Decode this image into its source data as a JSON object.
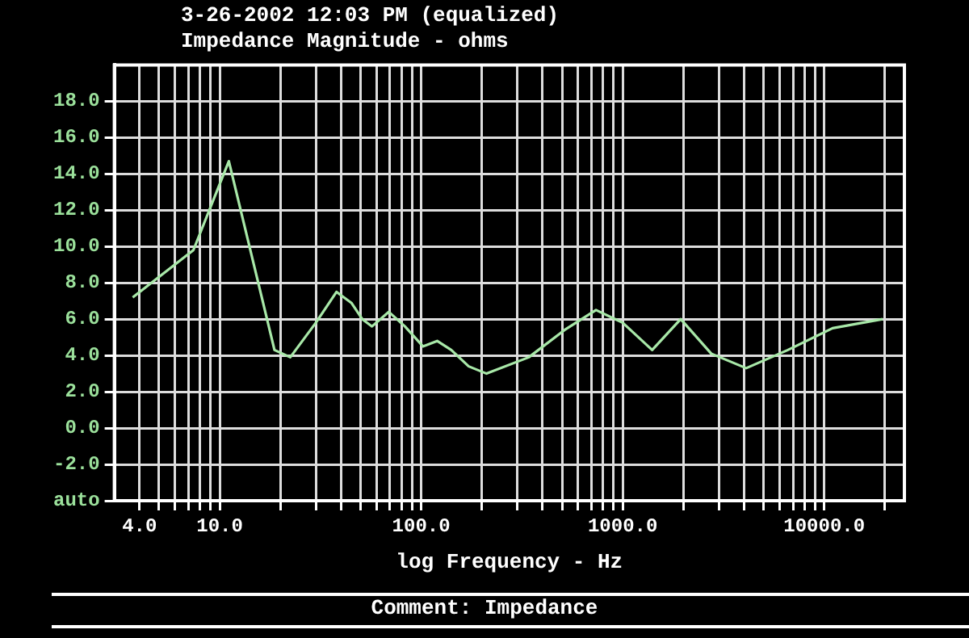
{
  "chart_data": {
    "type": "line",
    "title": "3-26-2002 12:03 PM (equalized)",
    "subtitle": "Impedance Magnitude - ohms",
    "xlabel": "log Frequency - Hz",
    "annotations": [
      "Comment: Impedance"
    ],
    "log": "x",
    "grid": true,
    "xlim": [
      3,
      25000
    ],
    "xticks": [
      {
        "value": 4,
        "label": "4.0"
      },
      {
        "value": 5,
        "label": null
      },
      {
        "value": 6,
        "label": null
      },
      {
        "value": 7,
        "label": null
      },
      {
        "value": 8,
        "label": null
      },
      {
        "value": 9,
        "label": null
      },
      {
        "value": 10,
        "label": "10.0"
      },
      {
        "value": 20,
        "label": null
      },
      {
        "value": 30,
        "label": null
      },
      {
        "value": 40,
        "label": null
      },
      {
        "value": 50,
        "label": null
      },
      {
        "value": 60,
        "label": null
      },
      {
        "value": 70,
        "label": null
      },
      {
        "value": 80,
        "label": null
      },
      {
        "value": 90,
        "label": null
      },
      {
        "value": 100,
        "label": "100.0"
      },
      {
        "value": 200,
        "label": null
      },
      {
        "value": 300,
        "label": null
      },
      {
        "value": 400,
        "label": null
      },
      {
        "value": 500,
        "label": null
      },
      {
        "value": 600,
        "label": null
      },
      {
        "value": 700,
        "label": null
      },
      {
        "value": 800,
        "label": null
      },
      {
        "value": 900,
        "label": null
      },
      {
        "value": 1000,
        "label": "1000.0"
      },
      {
        "value": 2000,
        "label": null
      },
      {
        "value": 3000,
        "label": null
      },
      {
        "value": 4000,
        "label": null
      },
      {
        "value": 5000,
        "label": null
      },
      {
        "value": 6000,
        "label": null
      },
      {
        "value": 7000,
        "label": null
      },
      {
        "value": 8000,
        "label": null
      },
      {
        "value": 9000,
        "label": null
      },
      {
        "value": 10000,
        "label": "10000.0"
      },
      {
        "value": 20000,
        "label": null
      }
    ],
    "ylim": [
      -4,
      20
    ],
    "yticks": [
      {
        "value": -4,
        "label": "auto"
      },
      {
        "value": -2,
        "label": "-2.0"
      },
      {
        "value": 0,
        "label": "0.0"
      },
      {
        "value": 2,
        "label": "2.0"
      },
      {
        "value": 4,
        "label": "4.0"
      },
      {
        "value": 6,
        "label": "6.0"
      },
      {
        "value": 8,
        "label": "8.0"
      },
      {
        "value": 10,
        "label": "10.0"
      },
      {
        "value": 12,
        "label": "12.0"
      },
      {
        "value": 14,
        "label": "14.0"
      },
      {
        "value": 16,
        "label": "16.0"
      },
      {
        "value": 18,
        "label": "18.0"
      }
    ],
    "x": [
      3.7,
      7.4,
      11.1,
      15.3,
      18.7,
      22.4,
      30,
      38,
      45,
      51,
      57,
      69,
      83,
      102,
      120,
      141,
      172,
      211,
      342,
      514,
      737,
      1000,
      1400,
      1940,
      2750,
      4100,
      6600,
      11000,
      19500
    ],
    "series": [
      {
        "color": "#a8e8a8",
        "values": [
          7.2,
          9.8,
          14.7,
          8.3,
          4.3,
          3.9,
          5.8,
          7.5,
          6.9,
          6.0,
          5.6,
          6.4,
          5.6,
          4.5,
          4.8,
          4.3,
          3.4,
          3.0,
          3.9,
          5.4,
          6.5,
          5.8,
          4.3,
          6.0,
          4.1,
          3.3,
          4.3,
          5.5,
          6.0
        ]
      }
    ]
  }
}
